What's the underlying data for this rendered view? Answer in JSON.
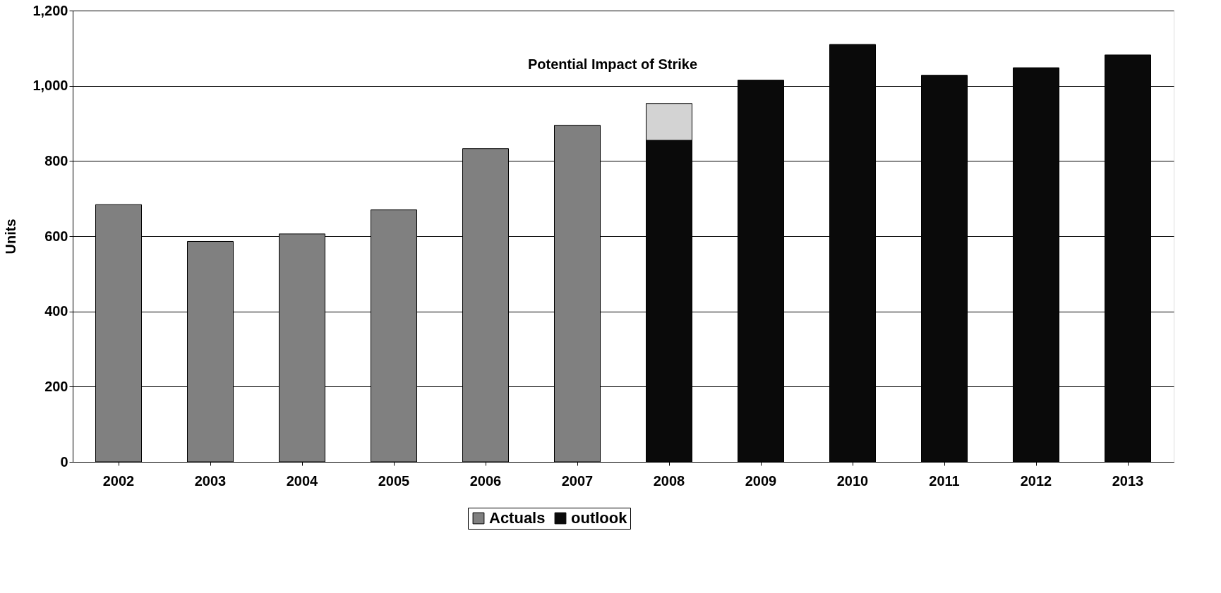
{
  "chart_data": {
    "type": "bar",
    "stacked": true,
    "ylabel": "Units",
    "categories": [
      "2002",
      "2003",
      "2004",
      "2005",
      "2006",
      "2007",
      "2008",
      "2009",
      "2010",
      "2011",
      "2012",
      "2013"
    ],
    "series": [
      {
        "name": "Actuals",
        "color": "#808080",
        "values": [
          684,
          586,
          606,
          670,
          833,
          895,
          null,
          null,
          null,
          null,
          null,
          null
        ]
      },
      {
        "name": "outlook",
        "color": "#0a0a0a",
        "values": [
          null,
          null,
          null,
          null,
          null,
          null,
          855,
          1015,
          1110,
          1028,
          1048,
          1082
        ]
      },
      {
        "color": "#d3d3d3",
        "values": [
          null,
          null,
          null,
          null,
          null,
          null,
          98,
          null,
          null,
          null,
          null,
          null
        ]
      }
    ],
    "ylim": [
      0,
      1200
    ],
    "yticks": [
      0,
      200,
      400,
      600,
      800,
      {
        "value": 1000,
        "label": "1,000"
      },
      {
        "value": 1200,
        "label": "1,200"
      }
    ],
    "grid": "y",
    "legend": "bottom",
    "annotations": [
      {
        "text": "Potential Impact of Strike",
        "x": "2008",
        "y": 953
      }
    ]
  }
}
